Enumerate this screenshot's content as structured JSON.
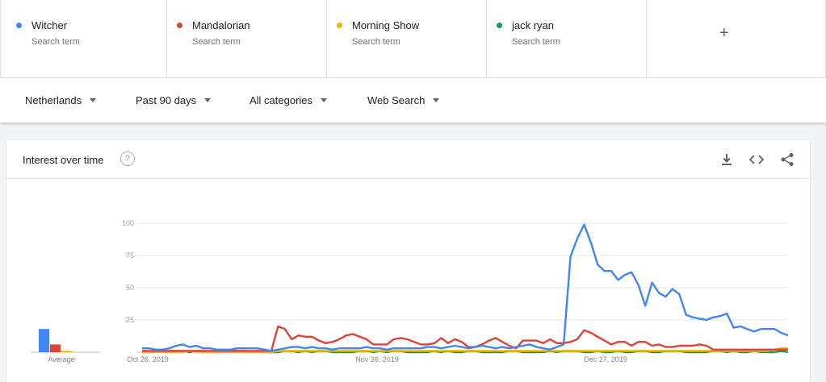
{
  "terms": [
    {
      "name": "Witcher",
      "sub": "Search term",
      "color": "#4285f4"
    },
    {
      "name": "Mandalorian",
      "sub": "Search term",
      "color": "#db4437"
    },
    {
      "name": "Morning Show",
      "sub": "Search term",
      "color": "#f4b400"
    },
    {
      "name": "jack ryan",
      "sub": "Search term",
      "color": "#0f9d58"
    }
  ],
  "add_term": "+",
  "filters": {
    "region": "Netherlands",
    "time": "Past 90 days",
    "category": "All categories",
    "search_type": "Web Search"
  },
  "card": {
    "title": "Interest over time",
    "help": "?",
    "average_label": "Average"
  },
  "chart_data": {
    "type": "line",
    "x_tick_labels": [
      "Oct 26, 2019",
      "Nov 26, 2019",
      "Dec 27, 2019"
    ],
    "y_ticks": [
      25,
      50,
      75,
      100
    ],
    "ylim": [
      0,
      100
    ],
    "grid": true,
    "averages": [
      {
        "term": "Witcher",
        "value": 18,
        "color": "#4285f4"
      },
      {
        "term": "Mandalorian",
        "value": 6,
        "color": "#db4437"
      },
      {
        "term": "Morning Show",
        "value": 1,
        "color": "#f4b400"
      },
      {
        "term": "jack ryan",
        "value": 0,
        "color": "#0f9d58"
      }
    ],
    "series": [
      {
        "name": "Witcher",
        "color": "#4285f4",
        "values": [
          3,
          3,
          2,
          2,
          3,
          5,
          6,
          4,
          5,
          3,
          3,
          2,
          2,
          2,
          3,
          3,
          3,
          3,
          2,
          1,
          2,
          3,
          4,
          4,
          3,
          4,
          3,
          3,
          2,
          3,
          3,
          3,
          3,
          4,
          3,
          3,
          2,
          3,
          3,
          3,
          3,
          3,
          4,
          4,
          3,
          4,
          5,
          4,
          3,
          4,
          5,
          4,
          3,
          4,
          3,
          4,
          5,
          6,
          4,
          3,
          2,
          4,
          6,
          74,
          88,
          99,
          85,
          68,
          63,
          63,
          56,
          60,
          62,
          52,
          36,
          54,
          46,
          43,
          49,
          45,
          29,
          27,
          26,
          25,
          27,
          28,
          30,
          19,
          20,
          18,
          16,
          18,
          18,
          18,
          15,
          13
        ]
      },
      {
        "name": "Mandalorian",
        "color": "#db4437",
        "values": [
          1,
          1,
          1,
          1,
          1,
          1,
          1,
          1,
          1,
          1,
          1,
          1,
          1,
          1,
          1,
          1,
          1,
          1,
          1,
          1,
          20,
          18,
          10,
          13,
          12,
          12,
          9,
          7,
          8,
          10,
          13,
          14,
          12,
          10,
          6,
          6,
          6,
          10,
          11,
          10,
          8,
          6,
          6,
          7,
          11,
          7,
          10,
          8,
          4,
          4,
          6,
          9,
          11,
          8,
          5,
          3,
          9,
          9,
          9,
          7,
          10,
          7,
          7,
          8,
          10,
          17,
          15,
          12,
          9,
          6,
          8,
          8,
          5,
          8,
          8,
          5,
          6,
          4,
          4,
          5,
          5,
          5,
          6,
          5,
          2,
          2,
          2,
          2,
          2,
          2,
          2,
          2,
          2,
          2,
          2,
          2
        ]
      },
      {
        "name": "Morning Show",
        "color": "#f4b400",
        "values": [
          0,
          0,
          0,
          0,
          0,
          0,
          0,
          1,
          0,
          0,
          0,
          0,
          0,
          0,
          0,
          0,
          0,
          0,
          0,
          0,
          1,
          1,
          1,
          1,
          1,
          1,
          1,
          1,
          1,
          1,
          1,
          1,
          1,
          1,
          1,
          1,
          1,
          1,
          1,
          1,
          1,
          1,
          1,
          1,
          1,
          1,
          1,
          1,
          1,
          1,
          1,
          1,
          1,
          1,
          1,
          1,
          1,
          1,
          1,
          1,
          1,
          1,
          1,
          1,
          1,
          1,
          1,
          1,
          1,
          1,
          1,
          1,
          1,
          1,
          1,
          1,
          1,
          1,
          1,
          1,
          1,
          1,
          1,
          1,
          1,
          1,
          1,
          1,
          1,
          1,
          1,
          1,
          1,
          2,
          3,
          3
        ]
      },
      {
        "name": "jack ryan",
        "color": "#0f9d58",
        "values": [
          0,
          0,
          1,
          1,
          1,
          1,
          1,
          0,
          1,
          1,
          0,
          1,
          0,
          1,
          1,
          1,
          0,
          1,
          0,
          0,
          0,
          1,
          1,
          0,
          1,
          0,
          1,
          1,
          0,
          0,
          0,
          0,
          1,
          1,
          0,
          1,
          0,
          1,
          1,
          0,
          0,
          0,
          0,
          1,
          0,
          1,
          0,
          0,
          1,
          1,
          0,
          0,
          0,
          0,
          1,
          1,
          0,
          0,
          0,
          0,
          1,
          0,
          1,
          1,
          1,
          0,
          0,
          1,
          0,
          0,
          1,
          0,
          0,
          1,
          1,
          0,
          0,
          1,
          1,
          1,
          0,
          0,
          0,
          0,
          1,
          1,
          0,
          1,
          0,
          0,
          1,
          0,
          0,
          0,
          1,
          0
        ]
      }
    ]
  }
}
